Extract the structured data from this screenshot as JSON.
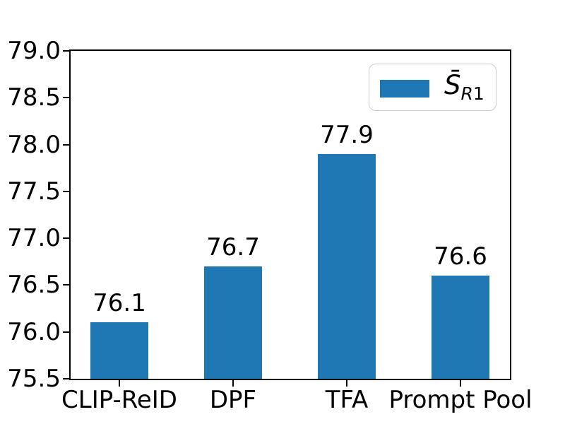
{
  "figure": {
    "background": "#ffffff",
    "frame_color": "#000000"
  },
  "chart_data": {
    "type": "bar",
    "title": "",
    "xlabel": "",
    "ylabel": "",
    "categories": [
      "CLIP-ReID",
      "DPF",
      "TFA",
      "Prompt Pool"
    ],
    "values": [
      76.1,
      76.7,
      77.9,
      76.6
    ],
    "value_labels": [
      "76.1",
      "76.7",
      "77.9",
      "76.6"
    ],
    "ylim": [
      75.5,
      79.0
    ],
    "ytick_labels": [
      "79.0",
      "78.5",
      "78.0",
      "77.5",
      "77.0",
      "76.5",
      "76.0",
      "75.5"
    ],
    "grid": false,
    "bar_color": "#1f77b4",
    "legend": {
      "position": "upper right",
      "border_color": "#cccccc",
      "entries": [
        {
          "label_base": "S̄",
          "label_sub_italic": "R",
          "label_sub_regular": "1",
          "label_plain": "S̄_R1",
          "swatch_color": "#1f77b4"
        }
      ]
    }
  }
}
